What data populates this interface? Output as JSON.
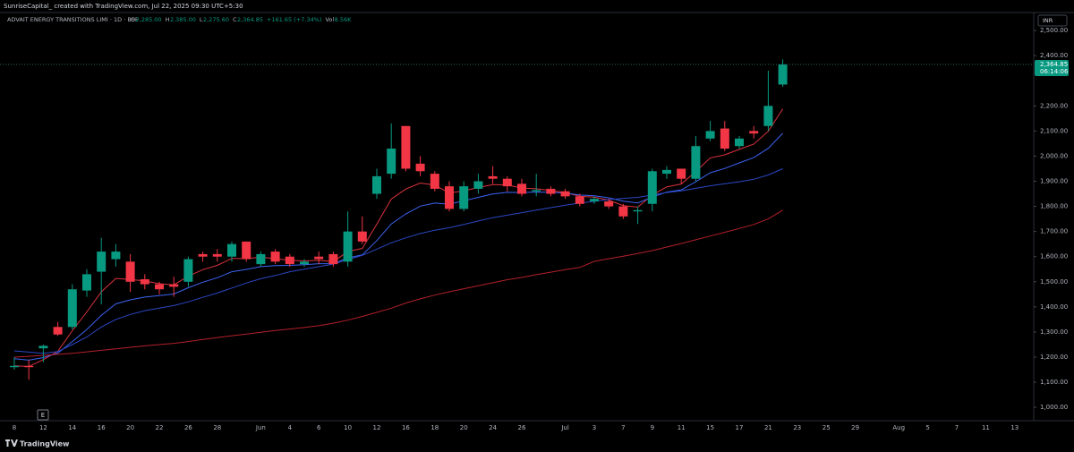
{
  "header": "SunriseCapital_ created with TradingView.com, Jul 22, 2025 09:30 UTC+5:30",
  "brand": "TradingView",
  "chart_data": {
    "type": "candlestick",
    "title": "ADVAIT ENERGY TRANSITIONS LIMI · 1D · BSE",
    "legend": [
      {
        "key": "O",
        "text": "2,285.00"
      },
      {
        "key": "H",
        "text": "2,385.00"
      },
      {
        "key": "L",
        "text": "2,275.60"
      },
      {
        "key": "C",
        "text": "2,364.85"
      },
      {
        "text": "+161.65 (+7.34%)"
      },
      {
        "key": "Vol",
        "text": "8.56K"
      }
    ],
    "currency": "INR",
    "last_price": {
      "value": 2364.85,
      "label": "2,364.85"
    },
    "countdown": "06:14:06",
    "event_marker": "E",
    "up_color": "#089981",
    "down_color": "#f23645",
    "categories": [
      "8",
      null,
      "12",
      null,
      "14",
      null,
      "16",
      null,
      "20",
      null,
      "22",
      null,
      "26",
      null,
      "28",
      null,
      null,
      "Jun",
      null,
      "4",
      null,
      "6",
      null,
      "10",
      null,
      "12",
      null,
      "16",
      null,
      "18",
      null,
      "20",
      null,
      "24",
      null,
      "26",
      null,
      null,
      "Jul",
      null,
      "3",
      null,
      "7",
      null,
      "9",
      null,
      "11",
      null,
      "15",
      null,
      "17",
      null,
      "21",
      null,
      "23",
      null,
      "25",
      null,
      "29",
      null,
      null,
      "Aug",
      null,
      "5",
      null,
      "7",
      null,
      "11",
      null,
      "13"
    ],
    "open": [
      1160,
      1165,
      1235,
      1320,
      1320,
      1465,
      1540,
      1590,
      1580,
      1510,
      1490,
      1490,
      1500,
      1610,
      1610,
      1600,
      1660,
      1570,
      1620,
      1600,
      1570,
      1600,
      1610,
      1580,
      1700,
      1850,
      1930,
      2120,
      1970,
      1930,
      1880,
      1790,
      1870,
      1920,
      1910,
      1890,
      1860,
      1870,
      1860,
      1840,
      1820,
      1820,
      1800,
      1780,
      1810,
      1930,
      1950,
      1910,
      2070,
      2110,
      2040,
      2100,
      2120,
      2285,
      null,
      null,
      null,
      null,
      null,
      null,
      null,
      null,
      null,
      null,
      null,
      null,
      null,
      null,
      null,
      null
    ],
    "high": [
      1200,
      1190,
      1250,
      1340,
      1490,
      1550,
      1675,
      1650,
      1610,
      1530,
      1500,
      1520,
      1600,
      1620,
      1630,
      1660,
      1660,
      1620,
      1630,
      1610,
      1590,
      1620,
      1620,
      1780,
      1760,
      1950,
      2130,
      2120,
      2000,
      1940,
      1900,
      1900,
      1930,
      1960,
      1920,
      1910,
      1930,
      1880,
      1870,
      1850,
      1840,
      1830,
      1810,
      1800,
      1950,
      1960,
      1950,
      2080,
      2140,
      2140,
      2080,
      2120,
      2340,
      2385,
      null,
      null,
      null,
      null,
      null,
      null,
      null,
      null,
      null,
      null,
      null,
      null,
      null,
      null,
      null,
      null
    ],
    "low": [
      1150,
      1110,
      1180,
      1285,
      1310,
      1440,
      1410,
      1560,
      1460,
      1470,
      1450,
      1440,
      1480,
      1580,
      1580,
      1580,
      1580,
      1560,
      1570,
      1560,
      1560,
      1570,
      1560,
      1560,
      1650,
      1830,
      1910,
      1940,
      1920,
      1860,
      1780,
      1780,
      1850,
      1890,
      1860,
      1840,
      1840,
      1840,
      1830,
      1800,
      1810,
      1790,
      1750,
      1730,
      1780,
      1910,
      1890,
      1900,
      2060,
      2020,
      2030,
      2070,
      2100,
      2275.6,
      null,
      null,
      null,
      null,
      null,
      null,
      null,
      null,
      null,
      null,
      null,
      null,
      null,
      null,
      null,
      null
    ],
    "close": [
      1165,
      1160,
      1245,
      1290,
      1470,
      1530,
      1620,
      1620,
      1500,
      1490,
      1470,
      1480,
      1590,
      1600,
      1600,
      1650,
      1590,
      1610,
      1580,
      1570,
      1580,
      1590,
      1570,
      1700,
      1660,
      1920,
      2030,
      1950,
      1940,
      1870,
      1790,
      1880,
      1900,
      1910,
      1880,
      1850,
      1865,
      1850,
      1840,
      1810,
      1830,
      1800,
      1760,
      1785,
      1940,
      1945,
      1910,
      2040,
      2100,
      2030,
      2070,
      2090,
      2200,
      2364.85,
      null,
      null,
      null,
      null,
      null,
      null,
      null,
      null,
      null,
      null,
      null,
      null,
      null,
      null,
      null,
      null
    ],
    "series": [
      {
        "color": "#d9333f",
        "values": [
          1165,
          1163,
          1190,
          1223,
          1305,
          1380,
          1460,
          1513,
          1509,
          1503,
          1492,
          1488,
          1522,
          1548,
          1565,
          1593,
          1592,
          1598,
          1592,
          1585,
          1583,
          1585,
          1580,
          1620,
          1633,
          1729,
          1829,
          1869,
          1893,
          1885,
          1853,
          1862,
          1875,
          1887,
          1885,
          1873,
          1870,
          1863,
          1855,
          1840,
          1837,
          1825,
          1803,
          1797,
          1845,
          1878,
          1889,
          1939,
          1993,
          2005,
          2027,
          2048,
          2099,
          2188,
          null,
          null,
          null,
          null,
          null,
          null,
          null,
          null,
          null,
          null,
          null,
          null,
          null,
          null,
          null,
          null
        ]
      },
      {
        "color": "#3d63f2",
        "values": [
          1194,
          1188,
          1198,
          1216,
          1262,
          1310,
          1366,
          1412,
          1428,
          1439,
          1445,
          1451,
          1476,
          1498,
          1516,
          1540,
          1549,
          1560,
          1564,
          1565,
          1568,
          1572,
          1572,
          1595,
          1607,
          1664,
          1730,
          1770,
          1801,
          1813,
          1809,
          1822,
          1836,
          1849,
          1856,
          1855,
          1857,
          1856,
          1853,
          1845,
          1842,
          1834,
          1821,
          1814,
          1837,
          1857,
          1866,
          1898,
          1934,
          1951,
          1973,
          1994,
          2031,
          2091,
          null,
          null,
          null,
          null,
          null,
          null,
          null,
          null,
          null,
          null,
          null,
          null,
          null,
          null,
          null,
          null
        ]
      },
      {
        "color": "#2b47c4",
        "values": [
          1225,
          1220,
          1215,
          1222,
          1250,
          1280,
          1320,
          1350,
          1370,
          1385,
          1395,
          1405,
          1420,
          1438,
          1455,
          1475,
          1495,
          1512,
          1525,
          1540,
          1550,
          1560,
          1570,
          1588,
          1605,
          1630,
          1655,
          1675,
          1692,
          1705,
          1715,
          1728,
          1742,
          1755,
          1765,
          1775,
          1785,
          1795,
          1805,
          1813,
          1820,
          1827,
          1832,
          1836,
          1845,
          1855,
          1862,
          1872,
          1882,
          1890,
          1898,
          1908,
          1925,
          1950,
          null,
          null,
          null,
          null,
          null,
          null,
          null,
          null,
          null,
          null,
          null,
          null,
          null,
          null,
          null,
          null
        ]
      },
      {
        "color": "#b3202a",
        "values": [
          1200,
          1203,
          1207,
          1211,
          1215,
          1221,
          1227,
          1233,
          1239,
          1245,
          1250,
          1255,
          1262,
          1270,
          1278,
          1285,
          1292,
          1299,
          1306,
          1312,
          1318,
          1325,
          1335,
          1347,
          1362,
          1378,
          1395,
          1415,
          1432,
          1447,
          1460,
          1472,
          1484,
          1496,
          1508,
          1517,
          1528,
          1538,
          1548,
          1557,
          1581,
          1592,
          1602,
          1612,
          1624,
          1638,
          1652,
          1667,
          1682,
          1697,
          1712,
          1728,
          1750,
          1785,
          null,
          null,
          null,
          null,
          null,
          null,
          null,
          null,
          null,
          null,
          null,
          null,
          null,
          null,
          null,
          null
        ]
      }
    ],
    "ylim": [
      947,
      2593
    ],
    "yticks": [
      {
        "value": 1000,
        "label": "1,000.00"
      },
      {
        "value": 1100,
        "label": "1,100.00"
      },
      {
        "value": 1200,
        "label": "1,200.00"
      },
      {
        "value": 1300,
        "label": "1,300.00"
      },
      {
        "value": 1400,
        "label": "1,400.00"
      },
      {
        "value": 1500,
        "label": "1,500.00"
      },
      {
        "value": 1600,
        "label": "1,600.00"
      },
      {
        "value": 1700,
        "label": "1,700.00"
      },
      {
        "value": 1800,
        "label": "1,800.00"
      },
      {
        "value": 1900,
        "label": "1,900.00"
      },
      {
        "value": 2000,
        "label": "2,000.00"
      },
      {
        "value": 2100,
        "label": "2,100.00"
      },
      {
        "value": 2200,
        "label": "2,200.00"
      },
      {
        "value": 2400,
        "label": "2,400.00"
      },
      {
        "value": 2500,
        "label": "2,500.00"
      }
    ],
    "grid": false
  }
}
